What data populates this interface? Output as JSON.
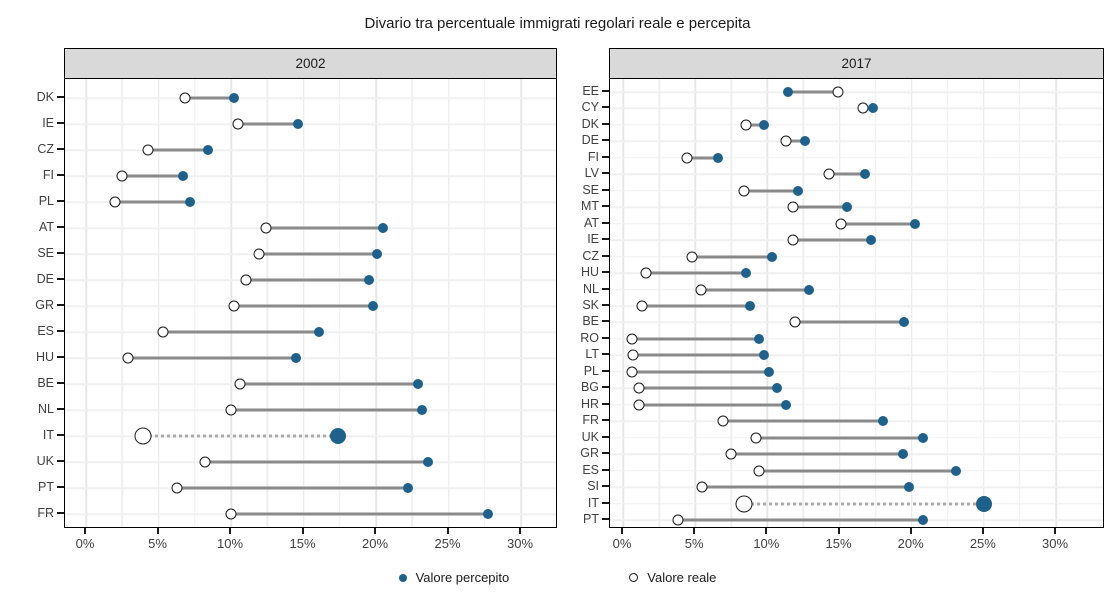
{
  "title": "Divario tra percentuale immigrati regolari reale e percepita",
  "legend": {
    "percepito": "Valore percepito",
    "reale": "Valore reale"
  },
  "colors": {
    "perceived": "#1F618D",
    "real_fill": "#FFFFFF",
    "real_border": "#1A1A1A",
    "connector": "#8A8A8A",
    "connector_highlight": "#ABABAB",
    "grid": "#EDEDED",
    "header_bg": "#D9D9D9",
    "panel_border": "#000000"
  },
  "x_axis": {
    "ticks": [
      "0%",
      "5%",
      "10%",
      "15%",
      "20%",
      "25%",
      "30%"
    ],
    "values": [
      0,
      5,
      10,
      15,
      20,
      25,
      30
    ]
  },
  "chart_data": [
    {
      "type": "dumbbell",
      "title": "2002",
      "xlim": [
        0,
        30
      ],
      "highlight": "IT",
      "categories": [
        "DK",
        "IE",
        "CZ",
        "FI",
        "PL",
        "AT",
        "SE",
        "DE",
        "GR",
        "ES",
        "HU",
        "BE",
        "NL",
        "IT",
        "UK",
        "PT",
        "FR"
      ],
      "series": [
        {
          "name": "Valore percepito",
          "values": [
            10.2,
            14.6,
            8.4,
            6.7,
            7.2,
            20.5,
            20.1,
            19.5,
            19.8,
            16.1,
            14.5,
            22.9,
            23.2,
            17.4,
            23.6,
            22.2,
            27.7
          ]
        },
        {
          "name": "Valore reale",
          "values": [
            6.8,
            10.5,
            4.3,
            2.5,
            2.0,
            12.4,
            11.9,
            11.0,
            10.2,
            5.3,
            2.9,
            10.6,
            10.0,
            3.9,
            8.2,
            6.3,
            10.0
          ]
        }
      ]
    },
    {
      "type": "dumbbell",
      "title": "2017",
      "xlim": [
        0,
        30
      ],
      "highlight": "IT",
      "categories": [
        "EE",
        "CY",
        "DK",
        "DE",
        "FI",
        "LV",
        "SE",
        "MT",
        "AT",
        "IE",
        "CZ",
        "HU",
        "NL",
        "SK",
        "BE",
        "RO",
        "LT",
        "PL",
        "BG",
        "HR",
        "FR",
        "UK",
        "GR",
        "ES",
        "SI",
        "IT",
        "PT"
      ],
      "series": [
        {
          "name": "Valore percepito",
          "values": [
            11.4,
            17.3,
            9.8,
            12.6,
            6.6,
            16.8,
            12.1,
            15.5,
            20.2,
            17.2,
            10.3,
            8.5,
            12.9,
            8.8,
            19.5,
            9.4,
            9.8,
            10.1,
            10.7,
            11.3,
            18.0,
            20.8,
            19.4,
            23.1,
            19.8,
            25.0,
            20.8
          ]
        },
        {
          "name": "Valore reale",
          "values": [
            14.9,
            16.6,
            8.5,
            11.3,
            4.4,
            14.3,
            8.4,
            11.8,
            15.1,
            11.8,
            4.8,
            1.6,
            5.4,
            1.3,
            11.9,
            0.6,
            0.7,
            0.6,
            1.1,
            1.1,
            6.9,
            9.2,
            7.5,
            9.4,
            5.5,
            8.4,
            3.8
          ]
        }
      ]
    }
  ]
}
